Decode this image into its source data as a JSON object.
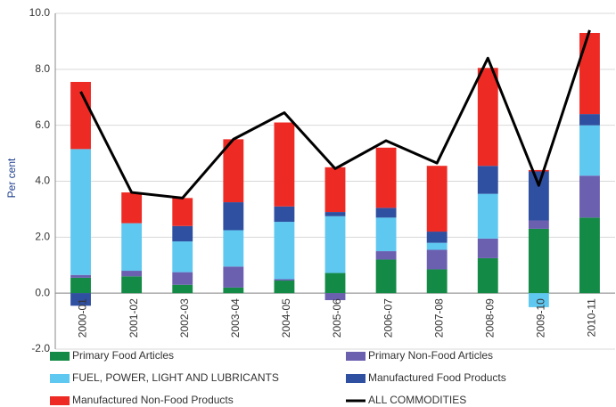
{
  "chart_data": {
    "type": "bar",
    "stacked": true,
    "y_label": "Per cent",
    "categories": [
      "2000-01",
      "2001-02",
      "2002-03",
      "2003-04",
      "2004-05",
      "2005-06",
      "2006-07",
      "2007-08",
      "2008-09",
      "2009-10",
      "2010-11"
    ],
    "series": [
      {
        "name": "Primary Food Articles",
        "color": "#138a45",
        "values": [
          0.55,
          0.6,
          0.3,
          0.2,
          0.45,
          0.72,
          1.2,
          0.85,
          1.25,
          2.3,
          2.7
        ]
      },
      {
        "name": "Primary Non-Food Articles",
        "color": "#6b5fb0",
        "values": [
          0.1,
          0.2,
          0.45,
          0.75,
          0.05,
          -0.25,
          0.3,
          0.7,
          0.7,
          0.3,
          1.5
        ]
      },
      {
        "name": "FUEL, POWER, LIGHT AND LUBRICANTS",
        "color": "#5fc8f0",
        "values": [
          4.5,
          1.7,
          1.1,
          1.3,
          2.05,
          2.03,
          1.2,
          0.25,
          1.6,
          -0.5,
          1.8
        ]
      },
      {
        "name": "Manufactured Food Products",
        "color": "#2f4fa0",
        "values": [
          -0.45,
          0,
          0.55,
          1.0,
          0.55,
          0.15,
          0.35,
          0.4,
          1.0,
          1.75,
          0.4
        ]
      },
      {
        "name": "Manufactured Non-Food Products",
        "color": "#ee2a24",
        "values": [
          2.4,
          1.1,
          1.0,
          2.25,
          3.0,
          1.6,
          2.15,
          2.35,
          3.5,
          0.05,
          2.9
        ]
      },
      {
        "name": "ALL COMMODITIES",
        "color": "#000000",
        "type": "line",
        "values": [
          7.2,
          3.6,
          3.4,
          5.5,
          6.45,
          4.45,
          5.45,
          4.65,
          8.4,
          3.85,
          9.4
        ]
      }
    ],
    "ylim": [
      -2,
      10
    ],
    "yticks": [
      {
        "value": -2,
        "label": "-2.0"
      },
      {
        "value": 0,
        "label": "0.0"
      },
      {
        "value": 2,
        "label": "2.0"
      },
      {
        "value": 4,
        "label": "4.0"
      },
      {
        "value": 6,
        "label": "6.0"
      },
      {
        "value": 8,
        "label": "8.0"
      },
      {
        "value": 10,
        "label": "10.0"
      }
    ],
    "grid": true
  }
}
